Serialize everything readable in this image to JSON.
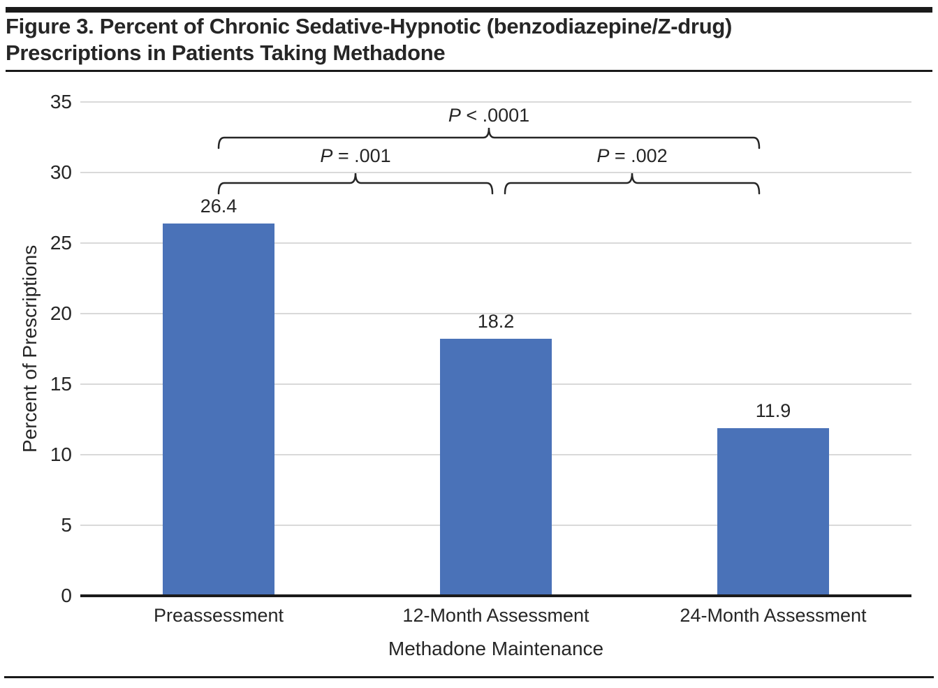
{
  "chart_data": {
    "type": "bar",
    "title": "Figure 3. Percent of Chronic Sedative-Hypnotic (benzodiazepine/Z-drug) Prescriptions in Patients Taking Methadone",
    "categories": [
      "Preassessment",
      "12-Month Assessment",
      "24-Month Assessment"
    ],
    "values": [
      26.4,
      18.2,
      11.9
    ],
    "value_labels": [
      "26.4",
      "18.2",
      "11.9"
    ],
    "xlabel": "Methadone Maintenance",
    "ylabel": "Percent of Prescriptions",
    "ylim": [
      0,
      35
    ],
    "yticks": [
      0,
      5,
      10,
      15,
      20,
      25,
      30,
      35
    ],
    "grid": true,
    "gridline_style": "horizontal light gray",
    "legend": "none",
    "bar_color": "#4A72B8",
    "annotations": [
      {
        "label": "P < .0001",
        "from": 0,
        "to": 2,
        "level": "outer"
      },
      {
        "label": "P = .001",
        "from": 0,
        "to": 1,
        "level": "inner"
      },
      {
        "label": "P = .002",
        "from": 1,
        "to": 2,
        "level": "inner"
      }
    ]
  },
  "colors": {
    "bar": "#4A72B8",
    "gridline": "#d9d9d9",
    "axis": "#1a1a1a",
    "text": "#262626",
    "brace": "#262626"
  }
}
